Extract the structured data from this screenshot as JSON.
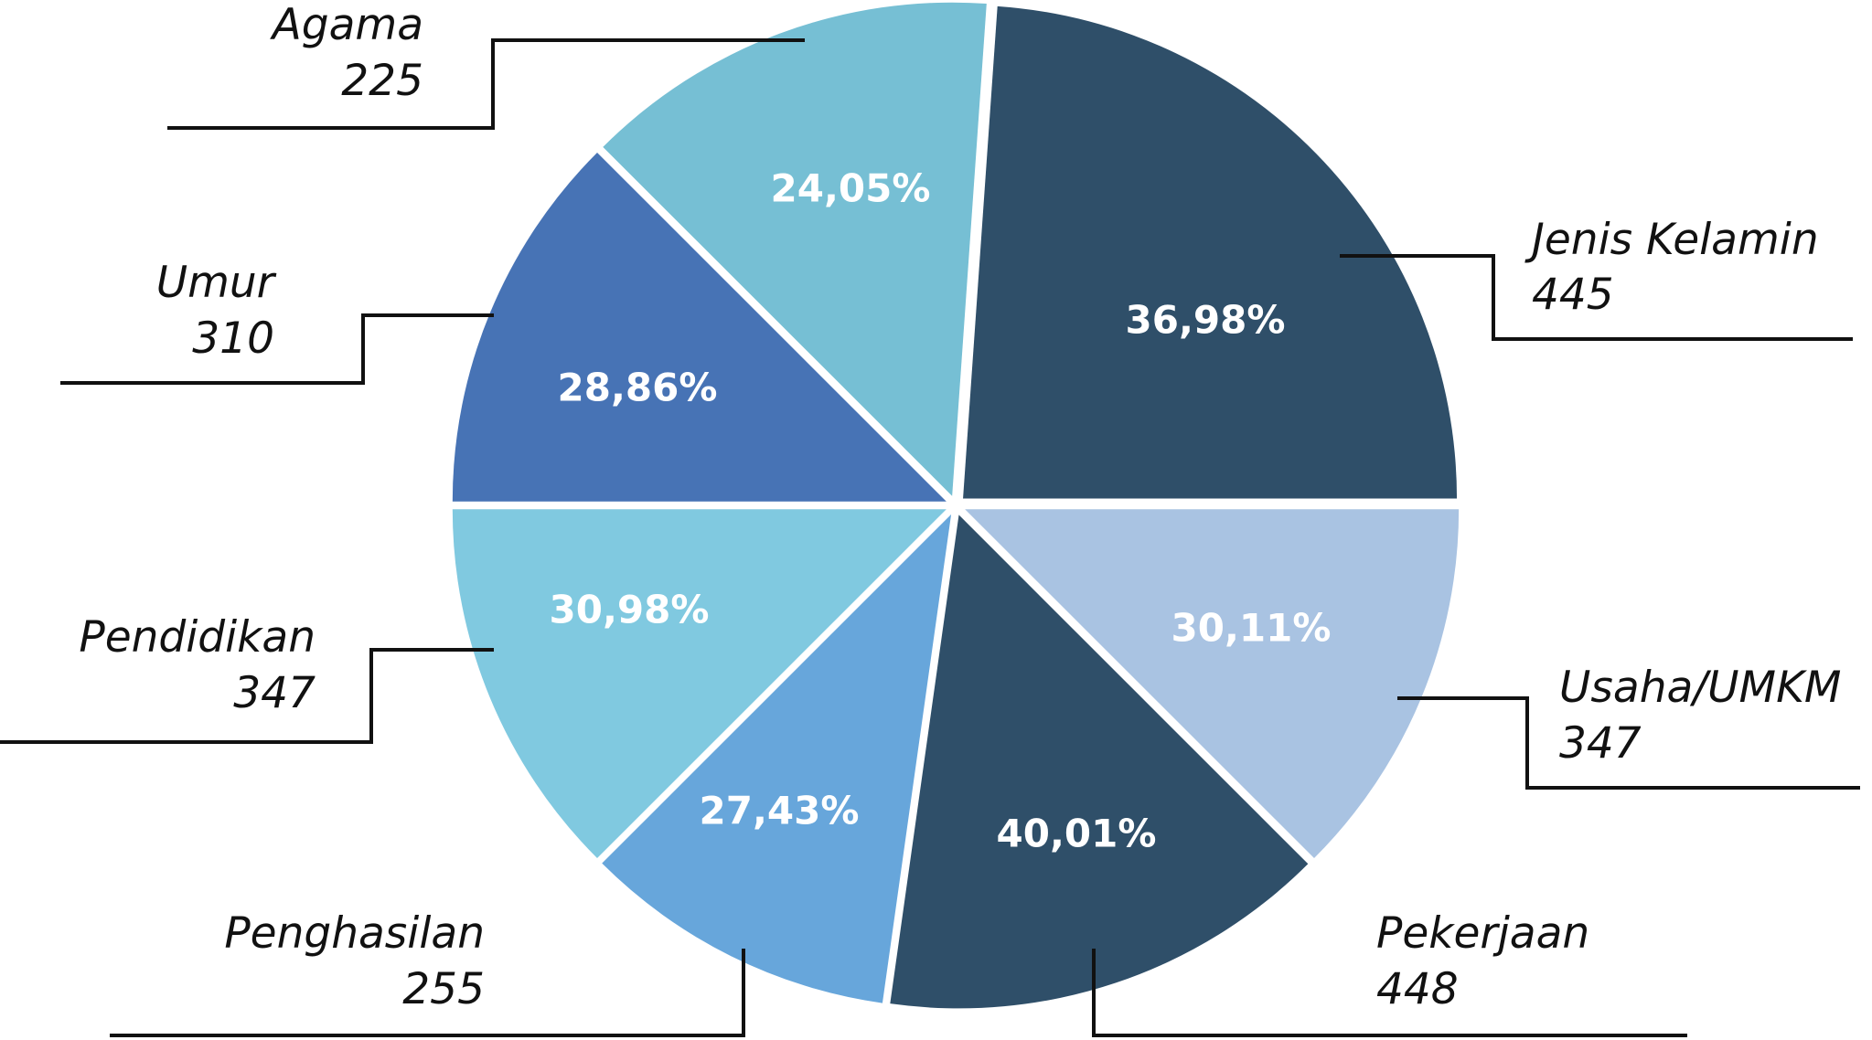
{
  "chart_data": {
    "type": "pie",
    "title": "",
    "slices": [
      {
        "category": "Jenis Kelamin",
        "count": "445",
        "percent_label": "36,98%",
        "percent": 36.98,
        "color": "#2f4f69"
      },
      {
        "category": "Usaha/UMKM",
        "count": "347",
        "percent_label": "30,11%",
        "percent": 30.11,
        "color": "#a9c3e2"
      },
      {
        "category": "Pekerjaan",
        "count": "448",
        "percent_label": "40,01%",
        "percent": 40.01,
        "color": "#2f4f69"
      },
      {
        "category": "Penghasilan",
        "count": "255",
        "percent_label": "27,43%",
        "percent": 27.43,
        "color": "#67a6db"
      },
      {
        "category": "Pendidikan",
        "count": "347",
        "percent_label": "30,98%",
        "percent": 30.98,
        "color": "#80c9e0"
      },
      {
        "category": "Umur",
        "count": "310",
        "percent_label": "28,86%",
        "percent": 28.86,
        "color": "#4773b5"
      },
      {
        "category": "Agama",
        "count": "225",
        "percent_label": "24,05%",
        "percent": 24.05,
        "color": "#76bfd4"
      }
    ]
  }
}
